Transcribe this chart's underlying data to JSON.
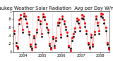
{
  "title": "Milwaukee Weather Solar Radiation  Avg per Day W/m²/minute",
  "title_fontsize": 4.8,
  "bg_color": "#ffffff",
  "plot_bg_color": "#ffffff",
  "grid_color": "#aaaaaa",
  "line_color_red": "#ff0000",
  "line_color_black": "#000000",
  "ylim": [
    0,
    1.0
  ],
  "yticks": [
    0.0,
    0.2,
    0.4,
    0.6,
    0.8,
    1.0
  ],
  "ytick_labels": [
    "0",
    ".2",
    ".4",
    ".6",
    ".8",
    "1"
  ],
  "red_values": [
    0.52,
    0.15,
    0.08,
    0.78,
    0.9,
    0.55,
    0.95,
    0.88,
    0.7,
    0.5,
    0.18,
    0.05,
    0.4,
    0.12,
    0.55,
    0.85,
    0.75,
    0.45,
    0.92,
    0.85,
    0.68,
    0.55,
    0.2,
    0.06,
    0.38,
    0.1,
    0.35,
    0.72,
    0.8,
    0.42,
    0.88,
    0.75,
    0.62,
    0.48,
    0.15,
    0.04,
    0.35,
    0.45,
    0.58,
    0.82,
    0.78,
    0.6,
    0.9,
    0.88,
    0.7,
    0.52,
    0.22,
    0.08,
    0.42,
    0.18,
    0.5,
    0.88,
    0.72,
    0.52,
    0.95,
    0.92,
    0.78,
    0.6,
    0.22,
    0.06
  ],
  "black_values": [
    0.45,
    0.22,
    0.12,
    0.68,
    0.82,
    0.48,
    0.88,
    0.8,
    0.62,
    0.42,
    0.14,
    0.08,
    0.35,
    0.18,
    0.48,
    0.78,
    0.68,
    0.38,
    0.85,
    0.78,
    0.6,
    0.48,
    0.16,
    0.1,
    0.32,
    0.15,
    0.28,
    0.65,
    0.72,
    0.36,
    0.8,
    0.68,
    0.55,
    0.4,
    0.12,
    0.08,
    0.28,
    0.38,
    0.5,
    0.75,
    0.7,
    0.52,
    0.82,
    0.8,
    0.62,
    0.44,
    0.18,
    0.12,
    0.36,
    0.14,
    0.42,
    0.8,
    0.65,
    0.44,
    0.88,
    0.84,
    0.7,
    0.52,
    0.18,
    0.1
  ],
  "n_years": 5,
  "year_labels": [
    "2004",
    "2005",
    "2006",
    "2007",
    "2008"
  ],
  "tick_fontsize": 3.5,
  "marker_size_red": 1.2,
  "marker_size_black": 1.0,
  "line_width": 0.35
}
